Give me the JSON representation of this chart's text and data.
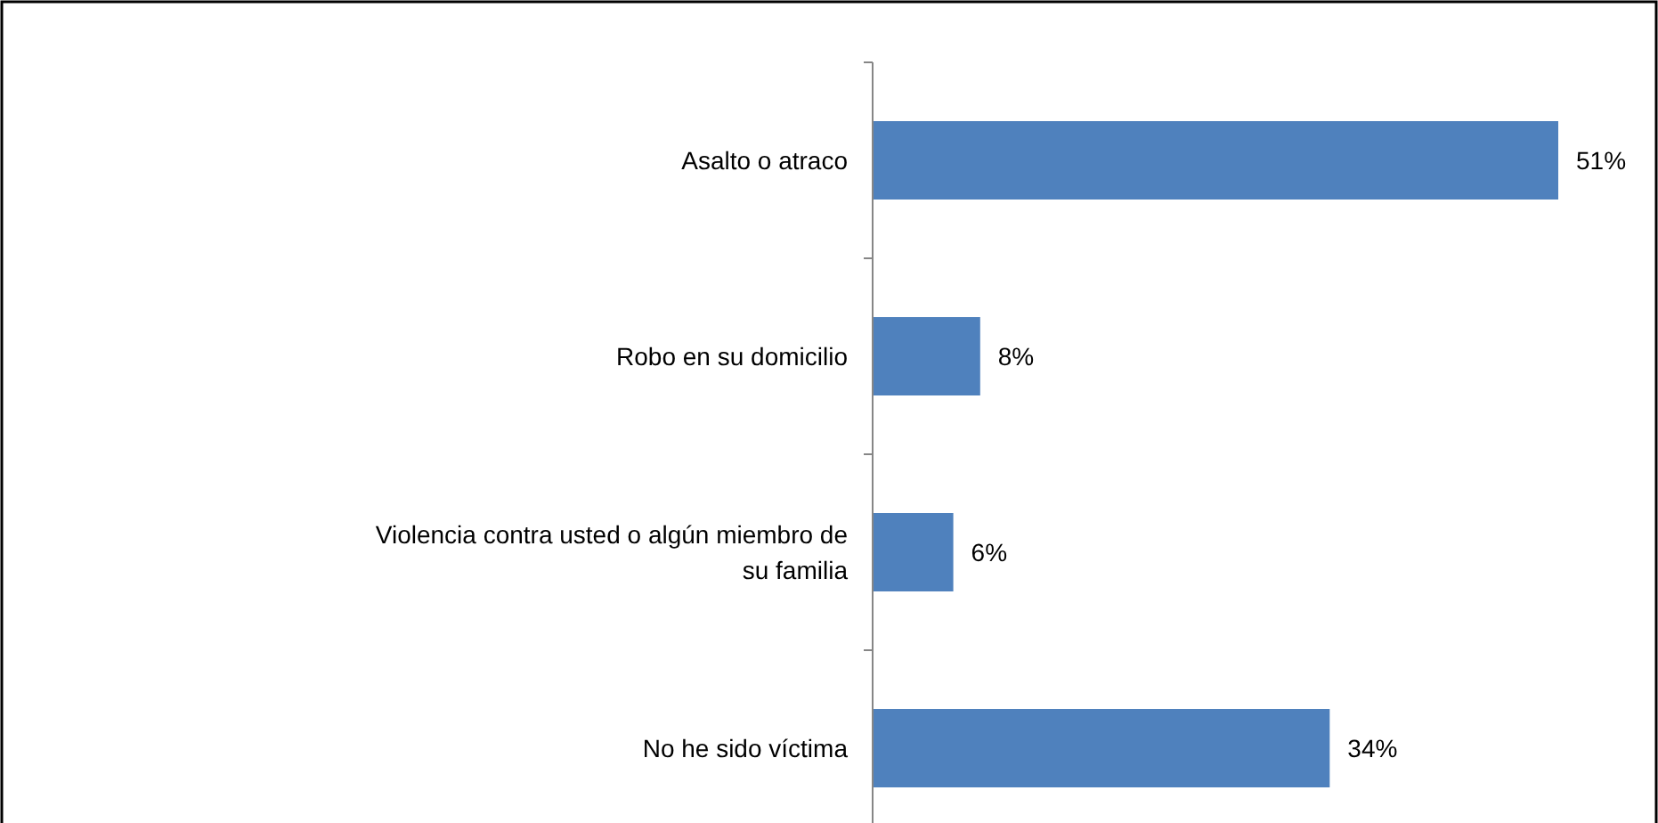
{
  "chart_data": {
    "type": "bar",
    "orientation": "horizontal",
    "categories": [
      "Asalto o atraco",
      "Robo en su domicilio",
      "Violencia contra usted o algún miembro de su familia",
      "No he sido víctima"
    ],
    "values": [
      51,
      8,
      6,
      34
    ],
    "value_labels": [
      "51%",
      "8%",
      "6%",
      "34%"
    ],
    "color": "#4f81bd"
  }
}
